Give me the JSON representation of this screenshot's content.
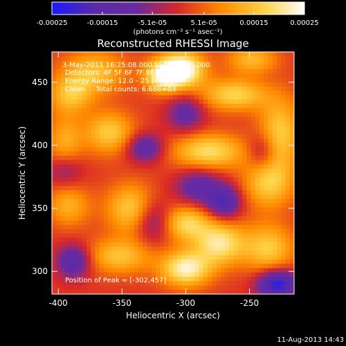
{
  "chart_data": {
    "type": "heatmap",
    "title": "Reconstructed RHESSI Image",
    "xlabel": "Heliocentric X (arcsec)",
    "ylabel": "Heliocentric Y (arcsec)",
    "xlim": [
      -405,
      -215
    ],
    "ylim": [
      282,
      474
    ],
    "x_ticks": [
      -400,
      -350,
      -300,
      -250
    ],
    "y_ticks": [
      300,
      350,
      400,
      450
    ],
    "colorbar": {
      "min": -0.00025,
      "max": 0.00025,
      "ticks": [
        -0.00025,
        -0.00015,
        -5.1e-05,
        5.1e-05,
        0.00015,
        0.00025
      ],
      "tick_labels": [
        "-0.00025",
        "-0.00015",
        "-5.1e-05",
        "5.1e-05",
        "0.00015",
        "0.00025"
      ],
      "label": "(photons cm⁻² s⁻¹ asec⁻²)",
      "colors": [
        "#1a1aff",
        "#5a2aa8",
        "#6a2aa0",
        "#d82828",
        "#ff8a00",
        "#ffd040",
        "#ffffff"
      ]
    },
    "annotations": [
      "3-May-2011 16:25:08.000 to 16:28:48.000",
      "Detectors: 4F 5F 6F 7F 8F",
      "Energy Range: 12.0 - 25.0 keV",
      "Clean     Total counts: 6.68E+03"
    ],
    "peak_label": "Position of Peak = [-302,457]",
    "peak": [
      -302,
      457
    ],
    "sources": [
      {
        "x": -302,
        "y": 460,
        "sx": 12,
        "sy": 10,
        "amp": 1.0
      },
      {
        "x": -318,
        "y": 455,
        "sx": 10,
        "sy": 9,
        "amp": 0.8
      },
      {
        "x": -372,
        "y": 458,
        "sx": 18,
        "sy": 12,
        "amp": 0.55
      },
      {
        "x": -390,
        "y": 440,
        "sx": 12,
        "sy": 10,
        "amp": 0.5
      },
      {
        "x": -360,
        "y": 410,
        "sx": 14,
        "sy": 12,
        "amp": 0.6
      },
      {
        "x": -395,
        "y": 400,
        "sx": 10,
        "sy": 18,
        "amp": 0.45
      },
      {
        "x": -282,
        "y": 395,
        "sx": 20,
        "sy": 10,
        "amp": 0.7
      },
      {
        "x": -262,
        "y": 440,
        "sx": 18,
        "sy": 9,
        "amp": 0.65
      },
      {
        "x": -226,
        "y": 410,
        "sx": 12,
        "sy": 20,
        "amp": 0.6
      },
      {
        "x": -235,
        "y": 370,
        "sx": 14,
        "sy": 14,
        "amp": 0.6
      },
      {
        "x": -343,
        "y": 350,
        "sx": 14,
        "sy": 14,
        "amp": 0.6
      },
      {
        "x": -300,
        "y": 338,
        "sx": 14,
        "sy": 10,
        "amp": 0.65
      },
      {
        "x": -273,
        "y": 322,
        "sx": 14,
        "sy": 12,
        "amp": 0.75
      },
      {
        "x": -300,
        "y": 302,
        "sx": 14,
        "sy": 10,
        "amp": 0.85
      },
      {
        "x": -352,
        "y": 312,
        "sx": 18,
        "sy": 10,
        "amp": 0.55
      },
      {
        "x": -392,
        "y": 352,
        "sx": 12,
        "sy": 12,
        "amp": 0.45
      },
      {
        "x": -235,
        "y": 318,
        "sx": 14,
        "sy": 14,
        "amp": 0.6
      },
      {
        "x": -248,
        "y": 468,
        "sx": 14,
        "sy": 8,
        "amp": 0.5
      },
      {
        "x": -332,
        "y": 398,
        "sx": 10,
        "sy": 8,
        "amp": -0.6
      },
      {
        "x": -300,
        "y": 425,
        "sx": 10,
        "sy": 10,
        "amp": -0.5
      },
      {
        "x": -290,
        "y": 367,
        "sx": 12,
        "sy": 10,
        "amp": -0.55
      },
      {
        "x": -270,
        "y": 355,
        "sx": 9,
        "sy": 9,
        "amp": -0.75
      },
      {
        "x": -388,
        "y": 308,
        "sx": 9,
        "sy": 9,
        "amp": -0.7
      },
      {
        "x": -325,
        "y": 340,
        "sx": 10,
        "sy": 12,
        "amp": -0.5
      },
      {
        "x": -228,
        "y": 290,
        "sx": 11,
        "sy": 8,
        "amp": -1.0
      },
      {
        "x": -395,
        "y": 380,
        "sx": 10,
        "sy": 10,
        "amp": -0.45
      },
      {
        "x": -240,
        "y": 395,
        "sx": 8,
        "sy": 10,
        "amp": -0.4
      }
    ],
    "grid": false,
    "legend": "none"
  },
  "timestamp": "11-Aug-2013 14:43"
}
